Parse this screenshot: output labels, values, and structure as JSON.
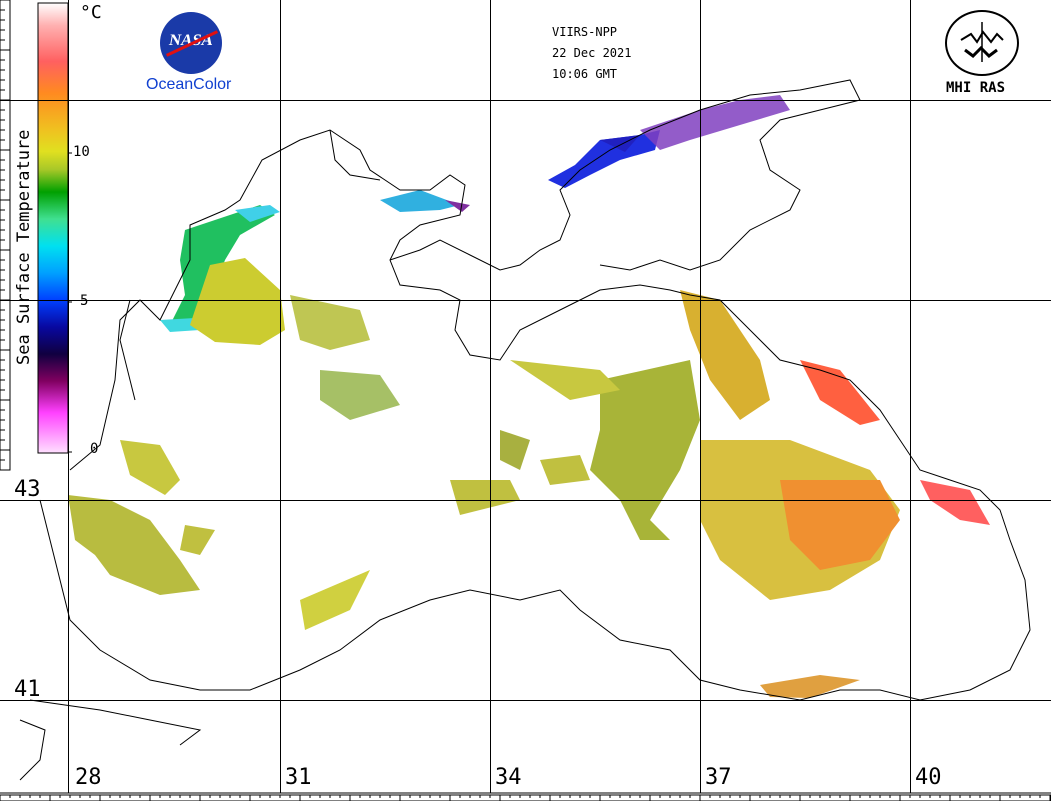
{
  "header": {
    "satellite": "VIIRS-NPP",
    "date": "22 Dec 2021",
    "time": "10:06 GMT"
  },
  "logos": {
    "nasa_text": "NASA",
    "oceancolor": "OceanColor",
    "mhi": "MHI RAS"
  },
  "colorbar": {
    "unit": "°C",
    "title": "Sea Surface Temperature",
    "ticks": [
      "10",
      "5",
      "0"
    ],
    "colors": [
      "#ffffff",
      "#ffb0b0",
      "#ff6060",
      "#ff7a20",
      "#f0b020",
      "#e8e020",
      "#c8d020",
      "#00a000",
      "#40e090",
      "#00d8f0",
      "#0070ff",
      "#1010c0",
      "#100060",
      "#800080",
      "#ff40ff",
      "#ffd0ff"
    ]
  },
  "axes": {
    "longitudes": [
      "28",
      "31",
      "34",
      "37",
      "40"
    ],
    "latitudes": [
      "43",
      "41"
    ]
  },
  "palette": {
    "land_border": "#000000",
    "warm": "#ff7020",
    "hot": "#ff5040",
    "mid": "#d4d040",
    "cool": "#20b050",
    "cold": "#2040ff",
    "coldest": "#8020a0"
  }
}
